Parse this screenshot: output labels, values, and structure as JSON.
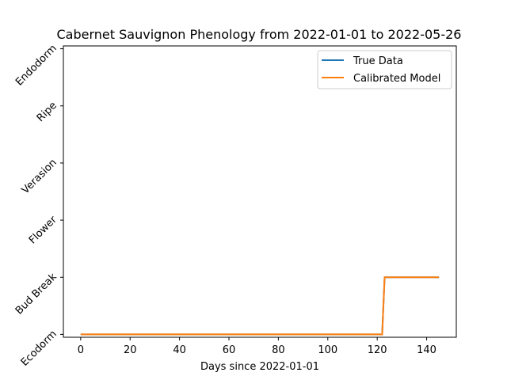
{
  "chart_data": {
    "type": "line",
    "title": "Cabernet Sauvignon Phenology from 2022-01-01 to 2022-05-26",
    "xlabel": "Days since 2022-01-01",
    "ylabel": "",
    "xlim": [
      -7,
      152
    ],
    "ylim": [
      -0.05,
      5.05
    ],
    "xticks": [
      0,
      20,
      40,
      60,
      80,
      100,
      120,
      140
    ],
    "yticks": [
      0,
      1,
      2,
      3,
      4,
      5
    ],
    "ytick_labels": [
      "Ecodorm",
      "Bud Break",
      "Flower",
      "Verasion",
      "Ripe",
      "Endodorm"
    ],
    "grid": false,
    "legend_position": "top-right",
    "series": [
      {
        "name": "True Data",
        "color": "#1f77b4",
        "points": [
          [
            0,
            0
          ],
          [
            122,
            0
          ],
          [
            123,
            1
          ],
          [
            145,
            1
          ]
        ]
      },
      {
        "name": "Calibrated Model",
        "color": "#ff7f0e",
        "points": [
          [
            0,
            0
          ],
          [
            122,
            0
          ],
          [
            123,
            1
          ],
          [
            145,
            1
          ]
        ]
      }
    ]
  }
}
